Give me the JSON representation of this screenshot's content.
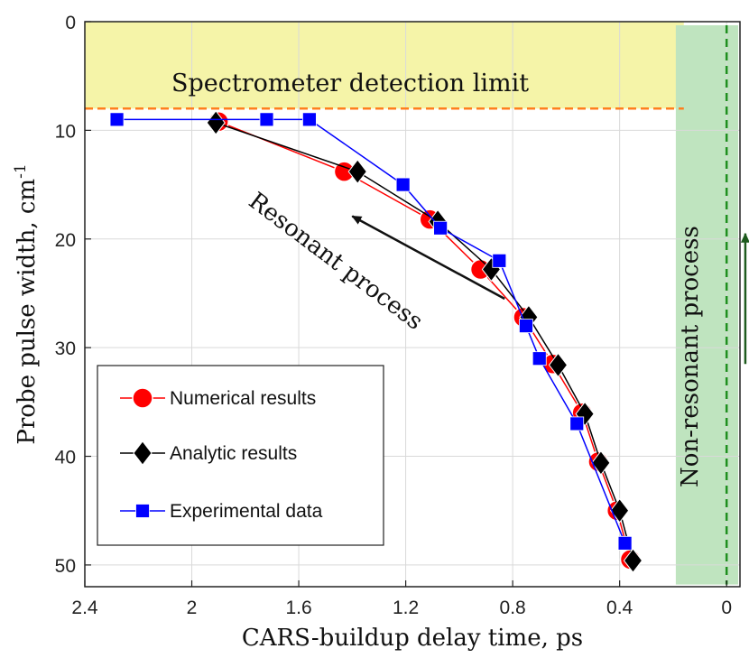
{
  "chart_data": {
    "type": "line",
    "title": "",
    "xlabel": "CARS-buildup delay time, ps",
    "ylabel_main": "Probe pulse width, cm",
    "ylabel_sup": "-1",
    "xlim": [
      2.4,
      -0.05
    ],
    "ylim": [
      0,
      52
    ],
    "x_reversed": true,
    "y_reversed": true,
    "xticks": [
      2.4,
      2,
      1.6,
      1.2,
      0.8,
      0.4,
      0
    ],
    "xtick_labels": [
      "2.4",
      "2",
      "1.6",
      "1.2",
      "0.8",
      "0.4",
      "0"
    ],
    "yticks": [
      0,
      10,
      20,
      30,
      40,
      50
    ],
    "ytick_labels": [
      "0",
      "10",
      "20",
      "30",
      "40",
      "50"
    ],
    "grid": true,
    "legend_position": "bottom-left",
    "series": [
      {
        "name": "Numerical results",
        "color": "#ff0000",
        "marker": "circle",
        "x": [
          1.9,
          1.43,
          1.11,
          0.92,
          0.76,
          0.65,
          0.54,
          0.48,
          0.41,
          0.36
        ],
        "y": [
          9.2,
          13.8,
          18.2,
          22.8,
          27.2,
          31.5,
          36.0,
          40.5,
          45.0,
          49.5
        ]
      },
      {
        "name": "Analytic results",
        "color": "#000000",
        "marker": "diamond",
        "x": [
          1.91,
          1.38,
          1.08,
          0.88,
          0.74,
          0.63,
          0.53,
          0.47,
          0.4,
          0.35
        ],
        "y": [
          9.3,
          13.8,
          18.4,
          22.8,
          27.2,
          31.6,
          36.1,
          40.6,
          45.0,
          49.6
        ]
      },
      {
        "name": "Experimental data",
        "color": "#0000ff",
        "marker": "square",
        "x": [
          2.28,
          1.72,
          1.56,
          1.21,
          1.07,
          0.85,
          0.75,
          0.7,
          0.56,
          0.38
        ],
        "y": [
          9.0,
          9.0,
          9.0,
          15.0,
          19.0,
          22.0,
          28.0,
          31.0,
          37.0,
          48.0
        ]
      }
    ],
    "annotations": {
      "detection_limit_text": "Spectrometer detection limit",
      "detection_limit_y": 8,
      "detection_band_color": "#f5f4a8",
      "nonresonant_band_color": "#bfe4bf",
      "nonresonant_band_x": [
        0.19,
        -0.05
      ],
      "nonresonant_line_x": 0,
      "resonant_text": "Resonant process",
      "nonresonant_text": "Non-resonant process",
      "resonant_arrow": {
        "from": [
          0.83,
          25.5
        ],
        "to": [
          1.4,
          17.9
        ]
      },
      "nonresonant_arrow": {
        "from": [
          -0.07,
          31.5
        ],
        "to": [
          -0.07,
          19.5
        ]
      },
      "limit_line_color": "#ff7f1e",
      "nonresonant_line_color": "#1f8f1f",
      "arrow_dark_color": "#1d5a1d"
    }
  }
}
